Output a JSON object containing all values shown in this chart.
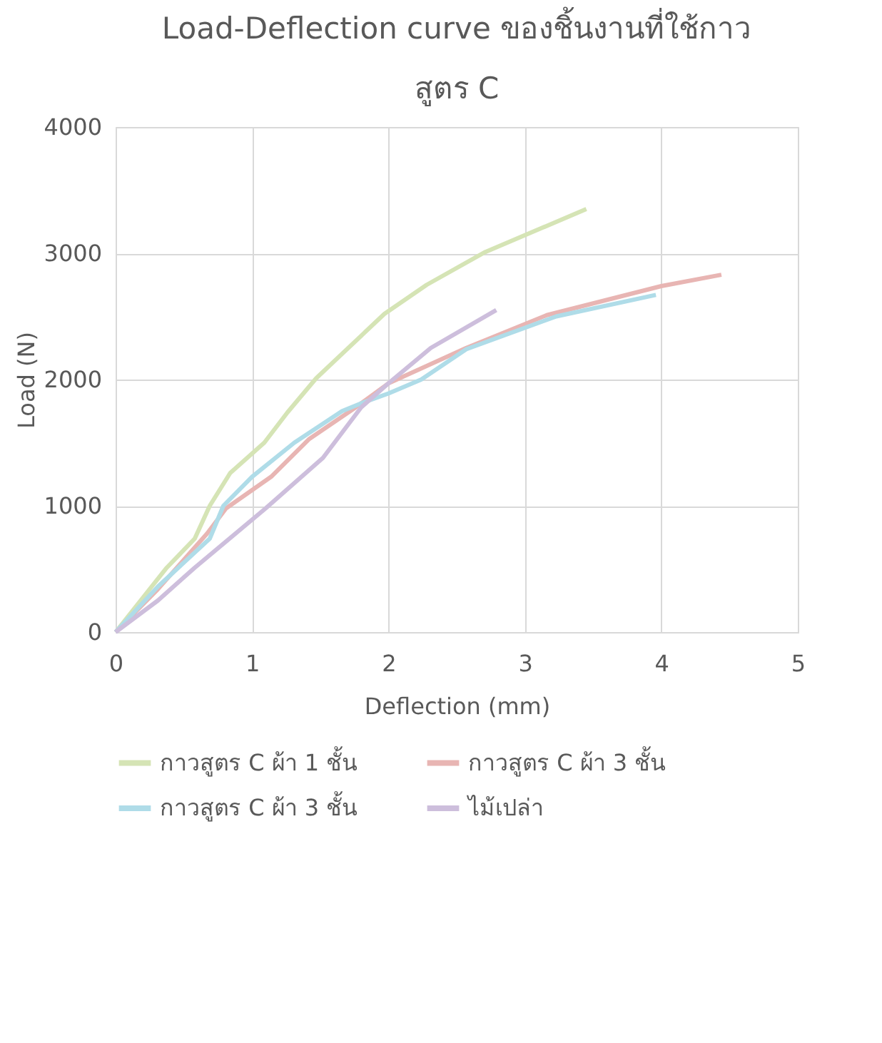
{
  "chart_data": {
    "type": "line",
    "title": "Load-Deflection curve ของชิ้นงานที่ใช้กาว สูตร C",
    "xlabel": "Deflection (mm)",
    "ylabel": "Load (N)",
    "xlim": [
      0,
      5
    ],
    "xticks": [
      0,
      1,
      2,
      3,
      4,
      5
    ],
    "ylim": [
      0,
      4000
    ],
    "yticks": [
      0,
      1000,
      2000,
      3000,
      4000
    ],
    "grid": true,
    "legend": "bottom",
    "line_style": "solid",
    "marker": "none",
    "series": [
      {
        "name": "กาวสูตร C ผ้า 1 ชั้น",
        "color": "#d5e4b5",
        "x": [
          0,
          0.375,
          0.58,
          0.69,
          0.84,
          1.09,
          1.26,
          1.47,
          1.97,
          2.28,
          2.71,
          3.45
        ],
        "values": [
          0,
          510,
          740,
          1000,
          1260,
          1500,
          1740,
          2010,
          2520,
          2750,
          3010,
          3350
        ]
      },
      {
        "name": "กาวสูตร C ผ้า 3 ชั้น",
        "color": "#e8b5b3",
        "x": [
          0,
          0.31,
          0.67,
          0.81,
          1.14,
          1.42,
          1.76,
          2.0,
          2.57,
          3.16,
          4.0,
          4.44
        ],
        "values": [
          0,
          340,
          780,
          980,
          1230,
          1530,
          1780,
          1970,
          2250,
          2510,
          2740,
          2830
        ]
      },
      {
        "name": "กาวสูตร C ผ้า 3 ชั้น",
        "color": "#afdce8",
        "x": [
          0,
          0.31,
          0.69,
          0.79,
          1.0,
          1.31,
          1.66,
          1.82,
          2.0,
          2.24,
          2.57,
          3.23,
          3.96
        ],
        "values": [
          0,
          360,
          740,
          1000,
          1230,
          1500,
          1750,
          1820,
          1890,
          2000,
          2240,
          2500,
          2670
        ]
      },
      {
        "name": "ไม้เปล่า",
        "color": "#cdbedc",
        "x": [
          0,
          0.31,
          0.58,
          1.1,
          1.52,
          1.8,
          2.0,
          2.31,
          2.79
        ],
        "values": [
          0,
          250,
          510,
          980,
          1380,
          1780,
          1970,
          2250,
          2550
        ]
      }
    ]
  }
}
